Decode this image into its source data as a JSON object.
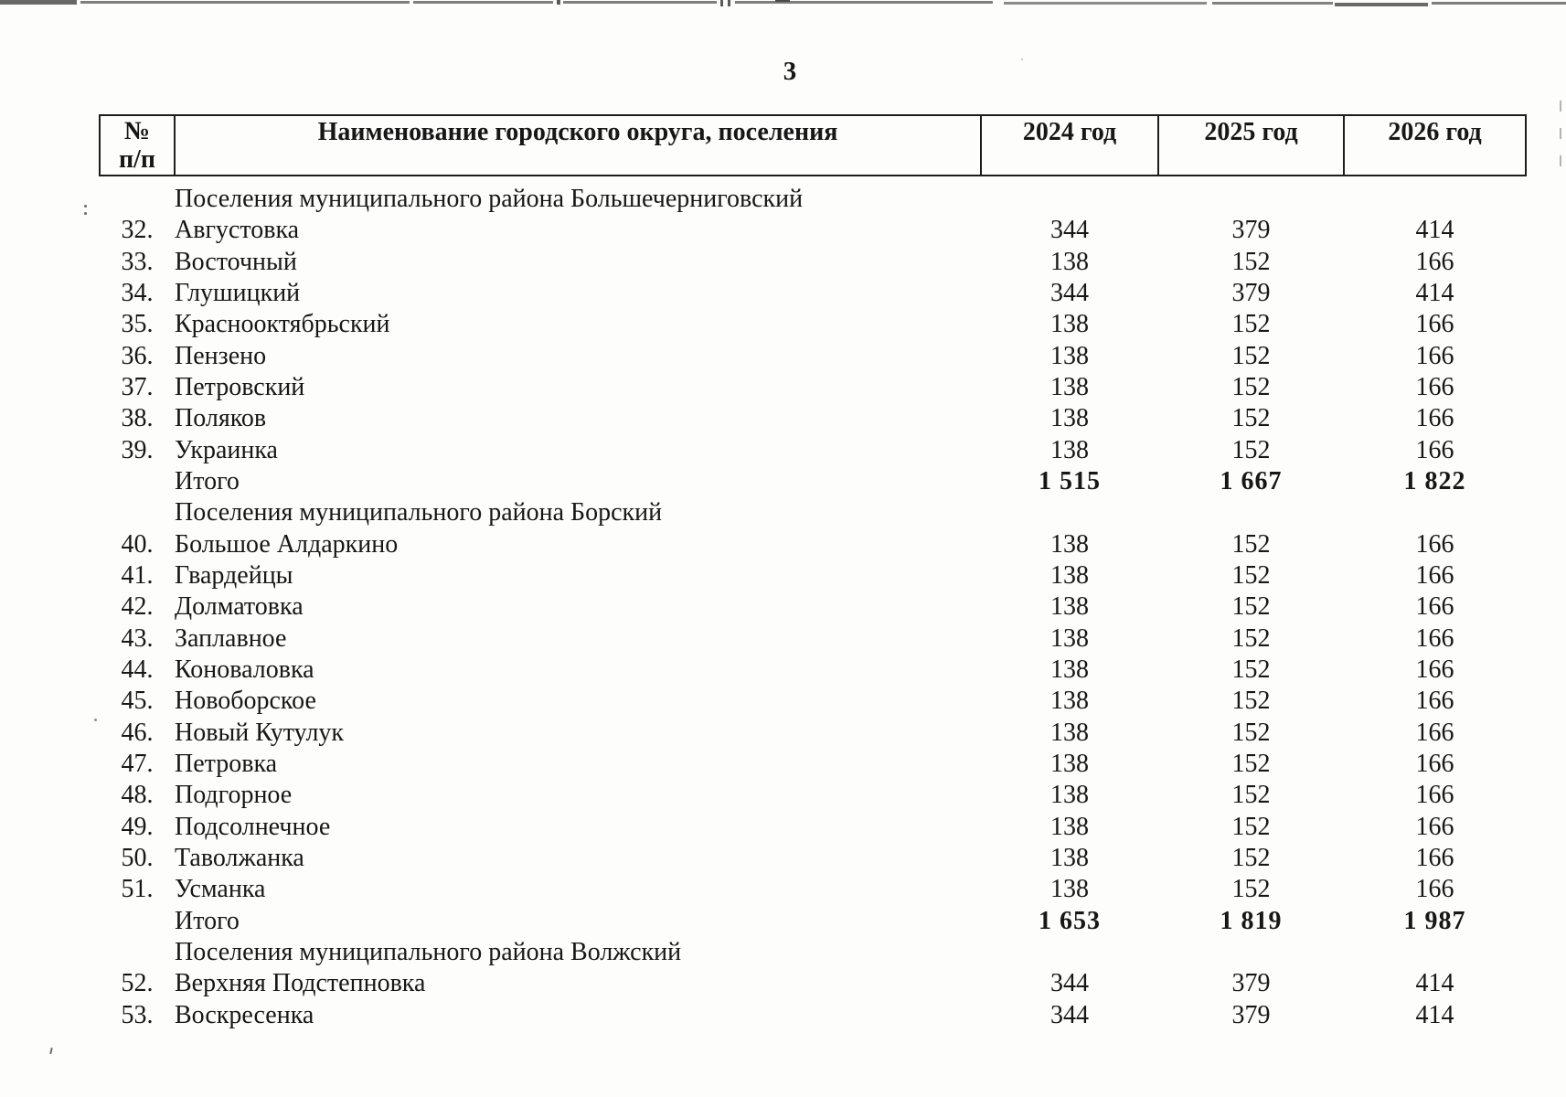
{
  "page": {
    "number": "3"
  },
  "table": {
    "header": {
      "num_top": "№",
      "num_bottom": "п/п",
      "name": "Наименование городского округа, поселения",
      "y2024": "2024 год",
      "y2025": "2025 год",
      "y2026": "2026 год"
    },
    "rows": [
      {
        "type": "section",
        "name": "Поселения муниципального района Большечерниговский"
      },
      {
        "type": "data",
        "num": "32.",
        "name": "Августовка",
        "y2024": "344",
        "y2025": "379",
        "y2026": "414"
      },
      {
        "type": "data",
        "num": "33.",
        "name": "Восточный",
        "y2024": "138",
        "y2025": "152",
        "y2026": "166"
      },
      {
        "type": "data",
        "num": "34.",
        "name": "Глушицкий",
        "y2024": "344",
        "y2025": "379",
        "y2026": "414"
      },
      {
        "type": "data",
        "num": "35.",
        "name": "Краснооктябрьский",
        "y2024": "138",
        "y2025": "152",
        "y2026": "166"
      },
      {
        "type": "data",
        "num": "36.",
        "name": "Пензено",
        "y2024": "138",
        "y2025": "152",
        "y2026": "166"
      },
      {
        "type": "data",
        "num": "37.",
        "name": "Петровский",
        "y2024": "138",
        "y2025": "152",
        "y2026": "166"
      },
      {
        "type": "data",
        "num": "38.",
        "name": "Поляков",
        "y2024": "138",
        "y2025": "152",
        "y2026": "166"
      },
      {
        "type": "data",
        "num": "39.",
        "name": "Украинка",
        "y2024": "138",
        "y2025": "152",
        "y2026": "166"
      },
      {
        "type": "total",
        "name": "Итого",
        "y2024": "1 515",
        "y2025": "1 667",
        "y2026": "1 822"
      },
      {
        "type": "section",
        "name": "Поселения муниципального района Борский"
      },
      {
        "type": "data",
        "num": "40.",
        "name": "Большое Алдаркино",
        "y2024": "138",
        "y2025": "152",
        "y2026": "166"
      },
      {
        "type": "data",
        "num": "41.",
        "name": "Гвардейцы",
        "y2024": "138",
        "y2025": "152",
        "y2026": "166"
      },
      {
        "type": "data",
        "num": "42.",
        "name": "Долматовка",
        "y2024": "138",
        "y2025": "152",
        "y2026": "166"
      },
      {
        "type": "data",
        "num": "43.",
        "name": "Заплавное",
        "y2024": "138",
        "y2025": "152",
        "y2026": "166"
      },
      {
        "type": "data",
        "num": "44.",
        "name": "Коноваловка",
        "y2024": "138",
        "y2025": "152",
        "y2026": "166"
      },
      {
        "type": "data",
        "num": "45.",
        "name": "Новоборское",
        "y2024": "138",
        "y2025": "152",
        "y2026": "166"
      },
      {
        "type": "data",
        "num": "46.",
        "name": "Новый Кутулук",
        "y2024": "138",
        "y2025": "152",
        "y2026": "166"
      },
      {
        "type": "data",
        "num": "47.",
        "name": "Петровка",
        "y2024": "138",
        "y2025": "152",
        "y2026": "166"
      },
      {
        "type": "data",
        "num": "48.",
        "name": "Подгорное",
        "y2024": "138",
        "y2025": "152",
        "y2026": "166"
      },
      {
        "type": "data",
        "num": "49.",
        "name": "Подсолнечное",
        "y2024": "138",
        "y2025": "152",
        "y2026": "166"
      },
      {
        "type": "data",
        "num": "50.",
        "name": "Таволжанка",
        "y2024": "138",
        "y2025": "152",
        "y2026": "166"
      },
      {
        "type": "data",
        "num": "51.",
        "name": "Усманка",
        "y2024": "138",
        "y2025": "152",
        "y2026": "166"
      },
      {
        "type": "total",
        "name": "Итого",
        "y2024": "1 653",
        "y2025": "1 819",
        "y2026": "1 987"
      },
      {
        "type": "section",
        "name": "Поселения муниципального района Волжский"
      },
      {
        "type": "data",
        "num": "52.",
        "name": "Верхняя Подстепновка",
        "y2024": "344",
        "y2025": "379",
        "y2026": "414"
      },
      {
        "type": "data",
        "num": "53.",
        "name": "Воскресенка",
        "y2024": "344",
        "y2025": "379",
        "y2026": "414"
      }
    ]
  }
}
